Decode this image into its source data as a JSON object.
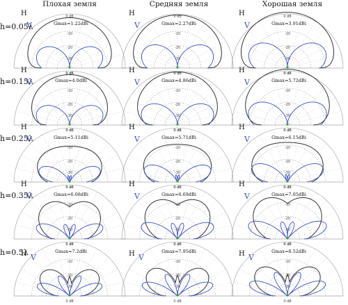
{
  "columns": [
    "Плохая земля",
    "Средняя земля",
    "Хорошая земля"
  ],
  "rows": [
    {
      "label": "h=0.05λ",
      "gains": [
        "Gmax=1.22dBi",
        "Gmax=2.27dBi",
        "Gmax=3.91dBi"
      ]
    },
    {
      "label": "h=0.15λ",
      "gains": [
        "Gmax=4.0dBi",
        "Gmax=4.86dBi",
        "Gmax=5.72dBi"
      ]
    },
    {
      "label": "h=0.25λ",
      "gains": [
        "Gmax=5.11dBi",
        "Gmax=5.71dBi",
        "Gmax=6.15dBi"
      ]
    },
    {
      "label": "h=0.35λ",
      "gains": [
        "Gmax=6.08dBi",
        "Gmax=6.69dBi",
        "Gmax=7.05dBi"
      ]
    },
    {
      "label": "h=0.5λ",
      "gains": [
        "Gmax=7.2dBi",
        "Gmax=7.95dBi",
        "Gmax=8.52dBi"
      ]
    }
  ],
  "ring_labels": [
    "0 dB",
    "-10",
    "-20",
    "-30",
    "0 dB"
  ],
  "curve_labels": {
    "h": "H",
    "v": "V"
  },
  "colors": {
    "h_curve": "#333333",
    "v_curve": "#3b4fc0",
    "grid": "#9a9a9a",
    "center": "#2a9a3a"
  }
}
